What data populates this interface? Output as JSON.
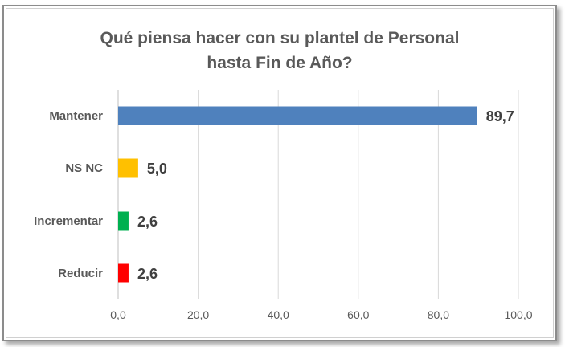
{
  "chart_data": {
    "type": "bar",
    "orientation": "horizontal",
    "title_lines": [
      "Qué piensa hacer con su plantel de Personal",
      "hasta Fin de Año?"
    ],
    "categories": [
      "Mantener",
      "NS NC",
      "Incrementar",
      "Reducir"
    ],
    "values": [
      89.7,
      5.0,
      2.6,
      2.6
    ],
    "value_labels": [
      "89,7",
      "5,0",
      "2,6",
      "2,6"
    ],
    "bar_colors": [
      "#4f81bd",
      "#ffc000",
      "#00b050",
      "#ff0000"
    ],
    "xlim": [
      0,
      100
    ],
    "x_ticks": [
      0,
      20,
      40,
      60,
      80,
      100
    ],
    "x_tick_labels": [
      "0,0",
      "20,0",
      "40,0",
      "60,0",
      "80,0",
      "100,0"
    ],
    "grid": true,
    "legend": "none"
  }
}
